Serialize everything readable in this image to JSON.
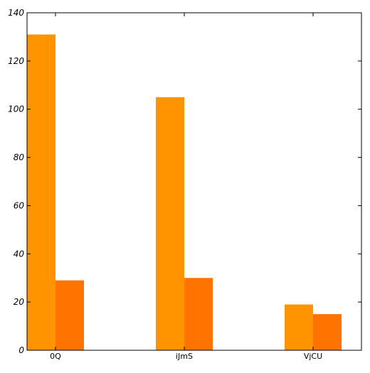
{
  "chart_data": {
    "type": "bar",
    "title": "",
    "xlabel": "",
    "ylabel": "",
    "categories": [
      "0Q",
      "iJmS",
      "VjCU"
    ],
    "series": [
      {
        "values": [
          131,
          105,
          19
        ],
        "color": "#ff9400"
      },
      {
        "values": [
          29,
          30,
          15
        ],
        "color": "#ff7300"
      }
    ],
    "ylim": [
      0,
      140
    ],
    "yticks": [
      0,
      20,
      40,
      60,
      80,
      100,
      120,
      140
    ],
    "grid": false,
    "legend": "none"
  }
}
